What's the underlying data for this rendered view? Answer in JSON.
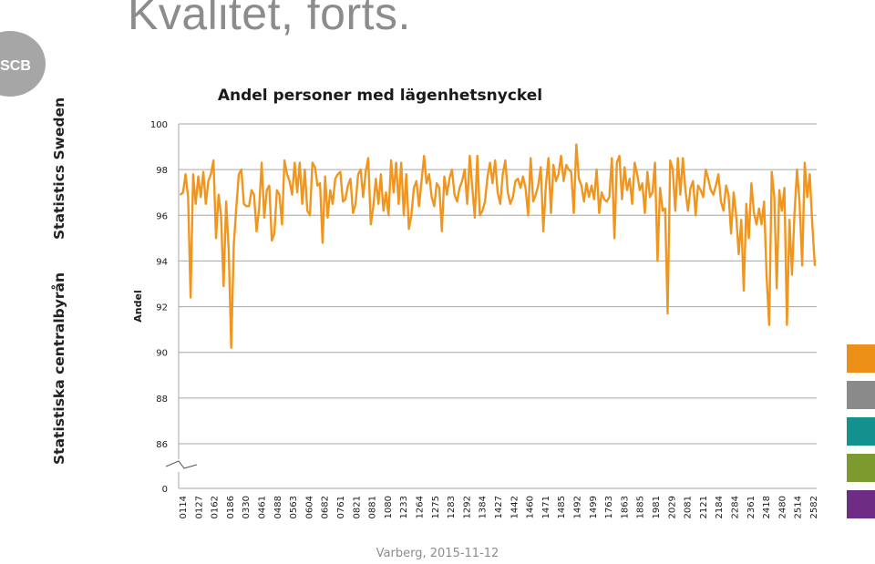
{
  "slide": {
    "title": "Kvalitet, forts.",
    "logo_text": "SCB",
    "org_name_sv": "Statistiska centralbyrån",
    "org_name_en": "Statistics Sweden",
    "footer": "Varberg, 2015-11-12"
  },
  "colors": {
    "line": "#f0961e",
    "grid": "#a6a6a6",
    "logo_bg": "#a6a6a6",
    "swatches": [
      "#ec9018",
      "#8a8a8a",
      "#12918f",
      "#7c9a2e",
      "#6e2c84"
    ]
  },
  "chart_data": {
    "type": "line",
    "title": "Andel personer med lägenhetsnyckel",
    "xlabel": "",
    "ylabel": "Andel",
    "ylim": [
      86,
      100
    ],
    "y_break": true,
    "yticks": [
      "100",
      "98",
      "96",
      "94",
      "92",
      "90",
      "88",
      "86",
      "0"
    ],
    "grid": "horizontal",
    "legend": "none",
    "x_tick_labels": [
      "0114",
      "0127",
      "0162",
      "0186",
      "0330",
      "0461",
      "0488",
      "0563",
      "0604",
      "0682",
      "0761",
      "0821",
      "0881",
      "1080",
      "1233",
      "1264",
      "1275",
      "1283",
      "1292",
      "1384",
      "1427",
      "1442",
      "1460",
      "1471",
      "1485",
      "1492",
      "1499",
      "1763",
      "1863",
      "1885",
      "1981",
      "2029",
      "2081",
      "2121",
      "2184",
      "2284",
      "2361",
      "2418",
      "2480",
      "2514",
      "2582"
    ],
    "series": [
      {
        "values": [
          96.9,
          97.0,
          97.8,
          96.8,
          92.4,
          97.8,
          96.5,
          97.7,
          96.8,
          97.9,
          96.5,
          97.5,
          97.8,
          98.4,
          95.0,
          96.9,
          96.0,
          92.9,
          96.6,
          94.5,
          90.2,
          94.7,
          96.3,
          97.8,
          98.0,
          96.5,
          96.4,
          96.4,
          97.1,
          96.9,
          95.3,
          96.3,
          98.3,
          95.9,
          97.1,
          97.3,
          94.9,
          95.2,
          97.1,
          96.9,
          95.6,
          98.4,
          97.8,
          97.5,
          96.9,
          98.3,
          97.0,
          98.3,
          96.5,
          98.0,
          96.2,
          96.0,
          98.3,
          98.1,
          97.3,
          97.4,
          94.8,
          97.7,
          95.9,
          97.1,
          96.5,
          97.6,
          97.8,
          97.9,
          96.6,
          96.7,
          97.3,
          97.6,
          96.1,
          96.5,
          97.8,
          98.0,
          96.8,
          97.9,
          98.5,
          95.6,
          96.4,
          97.6,
          96.5,
          97.8,
          96.2,
          97.0,
          96.0,
          98.4,
          97.0,
          98.3,
          96.5,
          98.3,
          96.0,
          97.8,
          95.4,
          96.0,
          97.2,
          97.5,
          96.4,
          97.5,
          98.6,
          97.4,
          97.8,
          96.8,
          96.4,
          97.4,
          97.2,
          95.3,
          97.7,
          96.9,
          97.6,
          98.0,
          96.9,
          96.6,
          97.2,
          97.5,
          98.0,
          96.5,
          98.6,
          97.2,
          95.9,
          98.6,
          96.0,
          96.2,
          96.6,
          97.7,
          98.3,
          97.4,
          98.4,
          97.0,
          96.5,
          97.8,
          98.4,
          97.0,
          96.5,
          96.8,
          97.5,
          97.6,
          97.2,
          97.7,
          97.2,
          96.0,
          98.5,
          96.6,
          96.9,
          97.3,
          98.1,
          95.3,
          97.3,
          98.5,
          96.1,
          98.2,
          97.5,
          97.8,
          98.6,
          97.5,
          98.2,
          98.0,
          97.9,
          96.1,
          99.1,
          97.6,
          97.3,
          96.6,
          97.4,
          96.8,
          97.3,
          96.7,
          98.0,
          96.1,
          97.0,
          96.7,
          96.6,
          96.8,
          98.5,
          95.0,
          98.3,
          98.6,
          96.7,
          98.1,
          97.1,
          97.6,
          96.5,
          98.3,
          97.8,
          97.1,
          97.4,
          96.1,
          97.9,
          96.8,
          97.0,
          98.3,
          94.0,
          97.2,
          96.2,
          96.3,
          91.7,
          98.4,
          98.0,
          96.2,
          98.5,
          96.9,
          98.5,
          97.1,
          96.2,
          97.2,
          97.5,
          96.0,
          97.3,
          97.1,
          96.8,
          98.0,
          97.6,
          97.1,
          96.9,
          97.3,
          97.8,
          96.6,
          96.2,
          97.3,
          96.9,
          95.2,
          97.0,
          96.0,
          94.3,
          95.8,
          92.7,
          96.5,
          95.0,
          97.4,
          96.1,
          95.6,
          96.3,
          95.6,
          96.6,
          93.3,
          91.2,
          97.9,
          96.8,
          92.8,
          97.1,
          96.2,
          97.2,
          91.2,
          95.8,
          93.4,
          96.1,
          98.0,
          96.5,
          93.8,
          98.3,
          96.8,
          97.8,
          95.6,
          93.8
        ]
      }
    ]
  }
}
